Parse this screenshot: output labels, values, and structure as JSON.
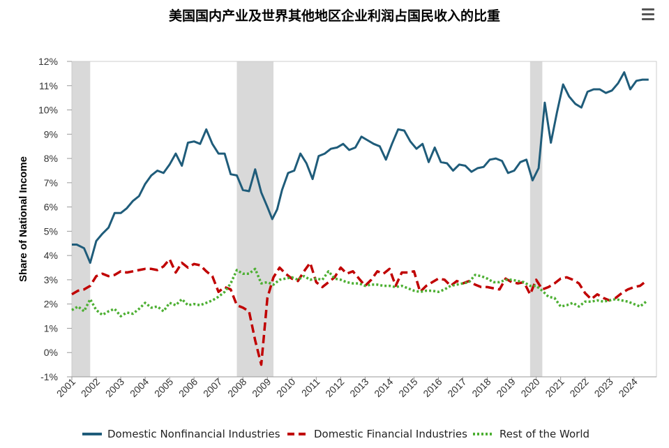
{
  "title": "美国国内产业及世界其他地区企业利润占国民收入的比重",
  "menu_icon": "hamburger-menu-icon",
  "chart_data": {
    "type": "line",
    "ylabel": "Share of National Income",
    "xlabel": "",
    "ylim": [
      -1,
      12
    ],
    "xlim": [
      2001.0,
      2024.92
    ],
    "grid": false,
    "legend_position": "bottom",
    "y_ticks": [
      "-1%",
      "0%",
      "1%",
      "2%",
      "3%",
      "4%",
      "5%",
      "6%",
      "7%",
      "8%",
      "9%",
      "10%",
      "11%",
      "12%"
    ],
    "x_ticks": [
      "2001",
      "2002",
      "2003",
      "2004",
      "2005",
      "2006",
      "2007",
      "2008",
      "2009",
      "2010",
      "2011",
      "2012",
      "2013",
      "2014",
      "2015",
      "2016",
      "2017",
      "2018",
      "2019",
      "2020",
      "2021",
      "2022",
      "2023",
      "2024"
    ],
    "recessions": [
      [
        2001.0,
        2001.75
      ],
      [
        2007.75,
        2009.25
      ],
      [
        2019.75,
        2020.25
      ]
    ],
    "series": [
      {
        "name": "Domestic Nonfinancial Industries",
        "color": "#1f5c7a",
        "style": "solid",
        "points": [
          [
            2001.0,
            4.45
          ],
          [
            2001.2,
            4.45
          ],
          [
            2001.5,
            4.3
          ],
          [
            2001.75,
            3.7
          ],
          [
            2002.0,
            4.6
          ],
          [
            2002.25,
            4.9
          ],
          [
            2002.5,
            5.15
          ],
          [
            2002.75,
            5.75
          ],
          [
            2003.0,
            5.75
          ],
          [
            2003.25,
            5.95
          ],
          [
            2003.5,
            6.25
          ],
          [
            2003.75,
            6.45
          ],
          [
            2004.0,
            6.95
          ],
          [
            2004.25,
            7.3
          ],
          [
            2004.5,
            7.5
          ],
          [
            2004.75,
            7.4
          ],
          [
            2005.0,
            7.75
          ],
          [
            2005.25,
            8.2
          ],
          [
            2005.5,
            7.7
          ],
          [
            2005.75,
            8.65
          ],
          [
            2006.0,
            8.7
          ],
          [
            2006.25,
            8.6
          ],
          [
            2006.5,
            9.2
          ],
          [
            2006.75,
            8.6
          ],
          [
            2007.0,
            8.2
          ],
          [
            2007.25,
            8.2
          ],
          [
            2007.5,
            7.35
          ],
          [
            2007.75,
            7.3
          ],
          [
            2008.0,
            6.7
          ],
          [
            2008.25,
            6.65
          ],
          [
            2008.5,
            7.55
          ],
          [
            2008.75,
            6.6
          ],
          [
            2009.0,
            6.0
          ],
          [
            2009.2,
            5.5
          ],
          [
            2009.4,
            5.9
          ],
          [
            2009.6,
            6.7
          ],
          [
            2009.85,
            7.4
          ],
          [
            2010.1,
            7.5
          ],
          [
            2010.35,
            8.2
          ],
          [
            2010.6,
            7.8
          ],
          [
            2010.85,
            7.15
          ],
          [
            2011.1,
            8.1
          ],
          [
            2011.35,
            8.2
          ],
          [
            2011.6,
            8.4
          ],
          [
            2011.85,
            8.45
          ],
          [
            2012.1,
            8.6
          ],
          [
            2012.35,
            8.35
          ],
          [
            2012.6,
            8.45
          ],
          [
            2012.85,
            8.9
          ],
          [
            2013.1,
            8.75
          ],
          [
            2013.35,
            8.6
          ],
          [
            2013.6,
            8.5
          ],
          [
            2013.85,
            7.95
          ],
          [
            2014.1,
            8.6
          ],
          [
            2014.35,
            9.2
          ],
          [
            2014.6,
            9.15
          ],
          [
            2014.85,
            8.7
          ],
          [
            2015.1,
            8.4
          ],
          [
            2015.35,
            8.6
          ],
          [
            2015.6,
            7.85
          ],
          [
            2015.85,
            8.45
          ],
          [
            2016.1,
            7.85
          ],
          [
            2016.35,
            7.8
          ],
          [
            2016.6,
            7.5
          ],
          [
            2016.85,
            7.75
          ],
          [
            2017.1,
            7.7
          ],
          [
            2017.35,
            7.45
          ],
          [
            2017.6,
            7.6
          ],
          [
            2017.85,
            7.65
          ],
          [
            2018.1,
            7.95
          ],
          [
            2018.35,
            8.0
          ],
          [
            2018.6,
            7.9
          ],
          [
            2018.85,
            7.4
          ],
          [
            2019.1,
            7.5
          ],
          [
            2019.35,
            7.85
          ],
          [
            2019.6,
            7.95
          ],
          [
            2019.85,
            7.1
          ],
          [
            2020.1,
            7.6
          ],
          [
            2020.35,
            10.3
          ],
          [
            2020.6,
            8.65
          ],
          [
            2020.85,
            9.9
          ],
          [
            2021.1,
            11.05
          ],
          [
            2021.35,
            10.55
          ],
          [
            2021.6,
            10.25
          ],
          [
            2021.85,
            10.1
          ],
          [
            2022.1,
            10.75
          ],
          [
            2022.35,
            10.85
          ],
          [
            2022.6,
            10.85
          ],
          [
            2022.85,
            10.7
          ],
          [
            2023.1,
            10.8
          ],
          [
            2023.35,
            11.1
          ],
          [
            2023.6,
            11.55
          ],
          [
            2023.85,
            10.85
          ],
          [
            2024.1,
            11.2
          ],
          [
            2024.35,
            11.25
          ],
          [
            2024.6,
            11.25
          ]
        ]
      },
      {
        "name": "Domestic Financial Industries",
        "color": "#c00000",
        "style": "dashed",
        "points": [
          [
            2001.0,
            2.4
          ],
          [
            2001.25,
            2.55
          ],
          [
            2001.5,
            2.6
          ],
          [
            2001.75,
            2.75
          ],
          [
            2002.0,
            3.15
          ],
          [
            2002.25,
            3.25
          ],
          [
            2002.5,
            3.15
          ],
          [
            2002.75,
            3.2
          ],
          [
            2003.0,
            3.35
          ],
          [
            2003.25,
            3.3
          ],
          [
            2003.5,
            3.35
          ],
          [
            2003.75,
            3.4
          ],
          [
            2004.0,
            3.45
          ],
          [
            2004.25,
            3.45
          ],
          [
            2004.5,
            3.4
          ],
          [
            2004.75,
            3.55
          ],
          [
            2005.0,
            3.85
          ],
          [
            2005.25,
            3.3
          ],
          [
            2005.5,
            3.7
          ],
          [
            2005.75,
            3.5
          ],
          [
            2006.0,
            3.65
          ],
          [
            2006.25,
            3.6
          ],
          [
            2006.5,
            3.35
          ],
          [
            2006.75,
            3.15
          ],
          [
            2007.0,
            2.5
          ],
          [
            2007.25,
            2.7
          ],
          [
            2007.5,
            2.6
          ],
          [
            2007.75,
            1.95
          ],
          [
            2008.0,
            1.85
          ],
          [
            2008.25,
            1.7
          ],
          [
            2008.5,
            0.5
          ],
          [
            2008.75,
            -0.5
          ],
          [
            2009.0,
            2.25
          ],
          [
            2009.25,
            3.1
          ],
          [
            2009.5,
            3.5
          ],
          [
            2009.75,
            3.25
          ],
          [
            2010.0,
            3.05
          ],
          [
            2010.25,
            2.95
          ],
          [
            2010.5,
            3.35
          ],
          [
            2010.75,
            3.7
          ],
          [
            2011.0,
            2.9
          ],
          [
            2011.25,
            2.7
          ],
          [
            2011.5,
            2.9
          ],
          [
            2011.75,
            3.1
          ],
          [
            2012.0,
            3.5
          ],
          [
            2012.25,
            3.25
          ],
          [
            2012.5,
            3.35
          ],
          [
            2012.75,
            3.05
          ],
          [
            2013.0,
            2.75
          ],
          [
            2013.25,
            3.0
          ],
          [
            2013.5,
            3.35
          ],
          [
            2013.75,
            3.25
          ],
          [
            2014.0,
            3.45
          ],
          [
            2014.25,
            2.75
          ],
          [
            2014.5,
            3.3
          ],
          [
            2014.75,
            3.3
          ],
          [
            2015.0,
            3.35
          ],
          [
            2015.25,
            2.5
          ],
          [
            2015.5,
            2.75
          ],
          [
            2015.75,
            2.9
          ],
          [
            2016.0,
            3.05
          ],
          [
            2016.25,
            3.0
          ],
          [
            2016.5,
            2.75
          ],
          [
            2016.75,
            2.95
          ],
          [
            2017.0,
            2.85
          ],
          [
            2017.25,
            2.95
          ],
          [
            2017.5,
            2.8
          ],
          [
            2017.75,
            2.7
          ],
          [
            2018.0,
            2.7
          ],
          [
            2018.25,
            2.65
          ],
          [
            2018.5,
            2.6
          ],
          [
            2018.75,
            3.05
          ],
          [
            2019.0,
            2.9
          ],
          [
            2019.25,
            2.85
          ],
          [
            2019.5,
            2.9
          ],
          [
            2019.75,
            2.4
          ],
          [
            2020.0,
            3.0
          ],
          [
            2020.25,
            2.6
          ],
          [
            2020.5,
            2.7
          ],
          [
            2020.75,
            2.85
          ],
          [
            2021.0,
            3.05
          ],
          [
            2021.25,
            3.1
          ],
          [
            2021.5,
            3.0
          ],
          [
            2021.75,
            2.85
          ],
          [
            2022.0,
            2.45
          ],
          [
            2022.25,
            2.2
          ],
          [
            2022.5,
            2.4
          ],
          [
            2022.75,
            2.25
          ],
          [
            2023.0,
            2.15
          ],
          [
            2023.25,
            2.25
          ],
          [
            2023.5,
            2.45
          ],
          [
            2023.75,
            2.6
          ],
          [
            2024.0,
            2.7
          ],
          [
            2024.25,
            2.75
          ],
          [
            2024.5,
            2.95
          ]
        ]
      },
      {
        "name": "Rest of the World",
        "color": "#4caf32",
        "style": "dotted",
        "points": [
          [
            2001.0,
            1.75
          ],
          [
            2001.25,
            1.9
          ],
          [
            2001.5,
            1.7
          ],
          [
            2001.75,
            2.2
          ],
          [
            2002.0,
            1.75
          ],
          [
            2002.25,
            1.55
          ],
          [
            2002.5,
            1.7
          ],
          [
            2002.75,
            1.8
          ],
          [
            2003.0,
            1.5
          ],
          [
            2003.25,
            1.65
          ],
          [
            2003.5,
            1.6
          ],
          [
            2003.75,
            1.8
          ],
          [
            2004.0,
            2.05
          ],
          [
            2004.25,
            1.85
          ],
          [
            2004.5,
            1.9
          ],
          [
            2004.75,
            1.7
          ],
          [
            2005.0,
            2.05
          ],
          [
            2005.25,
            1.95
          ],
          [
            2005.5,
            2.2
          ],
          [
            2005.75,
            1.95
          ],
          [
            2006.0,
            2.0
          ],
          [
            2006.25,
            1.95
          ],
          [
            2006.5,
            2.05
          ],
          [
            2006.75,
            2.15
          ],
          [
            2007.0,
            2.3
          ],
          [
            2007.25,
            2.5
          ],
          [
            2007.5,
            2.85
          ],
          [
            2007.75,
            3.4
          ],
          [
            2008.0,
            3.25
          ],
          [
            2008.25,
            3.25
          ],
          [
            2008.5,
            3.45
          ],
          [
            2008.75,
            2.85
          ],
          [
            2009.0,
            2.9
          ],
          [
            2009.25,
            2.8
          ],
          [
            2009.5,
            3.0
          ],
          [
            2009.75,
            3.05
          ],
          [
            2010.0,
            3.1
          ],
          [
            2010.25,
            3.0
          ],
          [
            2010.5,
            3.15
          ],
          [
            2010.75,
            3.0
          ],
          [
            2011.0,
            3.05
          ],
          [
            2011.25,
            3.0
          ],
          [
            2011.5,
            3.35
          ],
          [
            2011.75,
            3.05
          ],
          [
            2012.0,
            3.0
          ],
          [
            2012.25,
            2.9
          ],
          [
            2012.5,
            2.85
          ],
          [
            2012.75,
            2.85
          ],
          [
            2013.0,
            2.75
          ],
          [
            2013.25,
            2.8
          ],
          [
            2013.5,
            2.8
          ],
          [
            2013.75,
            2.75
          ],
          [
            2014.0,
            2.75
          ],
          [
            2014.25,
            2.7
          ],
          [
            2014.5,
            2.75
          ],
          [
            2014.75,
            2.65
          ],
          [
            2015.0,
            2.55
          ],
          [
            2015.25,
            2.5
          ],
          [
            2015.5,
            2.55
          ],
          [
            2015.75,
            2.55
          ],
          [
            2016.0,
            2.5
          ],
          [
            2016.25,
            2.6
          ],
          [
            2016.5,
            2.75
          ],
          [
            2016.75,
            2.8
          ],
          [
            2017.0,
            2.85
          ],
          [
            2017.25,
            2.9
          ],
          [
            2017.5,
            3.2
          ],
          [
            2017.75,
            3.15
          ],
          [
            2018.0,
            3.05
          ],
          [
            2018.25,
            2.9
          ],
          [
            2018.5,
            2.9
          ],
          [
            2018.75,
            3.0
          ],
          [
            2019.0,
            3.0
          ],
          [
            2019.25,
            2.95
          ],
          [
            2019.5,
            2.9
          ],
          [
            2019.75,
            2.75
          ],
          [
            2020.0,
            2.75
          ],
          [
            2020.25,
            2.55
          ],
          [
            2020.5,
            2.3
          ],
          [
            2020.75,
            2.25
          ],
          [
            2021.0,
            1.9
          ],
          [
            2021.25,
            1.95
          ],
          [
            2021.5,
            2.05
          ],
          [
            2021.75,
            1.9
          ],
          [
            2022.0,
            2.1
          ],
          [
            2022.25,
            2.1
          ],
          [
            2022.5,
            2.15
          ],
          [
            2022.75,
            2.1
          ],
          [
            2023.0,
            2.15
          ],
          [
            2023.25,
            2.2
          ],
          [
            2023.5,
            2.15
          ],
          [
            2023.75,
            2.1
          ],
          [
            2024.0,
            2.0
          ],
          [
            2024.25,
            1.9
          ],
          [
            2024.5,
            2.1
          ]
        ]
      }
    ]
  }
}
